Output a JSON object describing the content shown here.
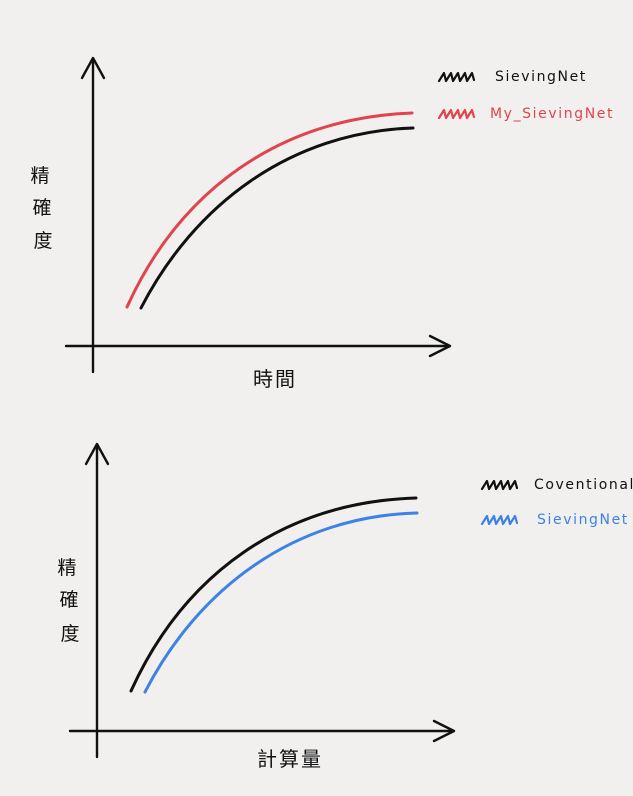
{
  "colors": {
    "ink": "#111111",
    "red": "#e0454d",
    "blue": "#3d82e4",
    "paper": "#f1f0ef"
  },
  "charts": [
    {
      "ylabel": [
        "精",
        "確",
        "度"
      ],
      "xlabel": "時間",
      "legend": [
        {
          "label": "SievingNet",
          "color": "#111111"
        },
        {
          "label": "My_SievingNet",
          "color": "#e0454d"
        }
      ]
    },
    {
      "ylabel": [
        "精",
        "確",
        "度"
      ],
      "xlabel": "計算量",
      "legend": [
        {
          "label": "Coventional",
          "color": "#111111"
        },
        {
          "label": "SievingNet",
          "color": "#3d82e4"
        }
      ]
    }
  ]
}
